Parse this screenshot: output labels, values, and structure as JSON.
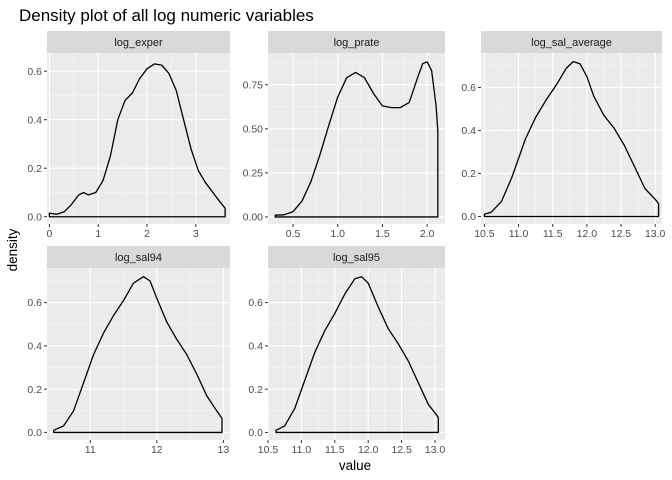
{
  "chart_data": {
    "type": "area",
    "title": "Density plot of all log numeric variables",
    "xlabel": "value",
    "ylabel": "density",
    "colors": {
      "panel_bg": "#ebebeb",
      "strip_bg": "#d9d9d9",
      "grid_major": "#ffffff",
      "line": "#000000"
    },
    "facets": [
      {
        "name": "log_exper",
        "xlim": [
          -0.05,
          3.7
        ],
        "ylim": [
          -0.03,
          0.675
        ],
        "xticks": [
          0,
          1,
          2,
          3
        ],
        "xtick_labels": [
          "0",
          "1",
          "2",
          "3"
        ],
        "yticks": [
          0.0,
          0.2,
          0.4,
          0.6
        ],
        "ytick_labels": [
          "0.0",
          "0.2",
          "0.4",
          "0.6"
        ],
        "x": [
          0.0,
          0.15,
          0.3,
          0.45,
          0.6,
          0.7,
          0.8,
          0.95,
          1.1,
          1.25,
          1.4,
          1.55,
          1.7,
          1.85,
          2.0,
          2.15,
          2.3,
          2.45,
          2.6,
          2.75,
          2.9,
          3.05,
          3.2,
          3.35,
          3.5,
          3.6
        ],
        "y": [
          0.015,
          0.01,
          0.02,
          0.05,
          0.09,
          0.1,
          0.09,
          0.1,
          0.15,
          0.25,
          0.4,
          0.48,
          0.51,
          0.57,
          0.61,
          0.63,
          0.625,
          0.59,
          0.52,
          0.4,
          0.28,
          0.19,
          0.14,
          0.1,
          0.06,
          0.035
        ]
      },
      {
        "name": "log_prate",
        "xlim": [
          0.22,
          2.2
        ],
        "ylim": [
          -0.04,
          0.93
        ],
        "xticks": [
          0.5,
          1.0,
          1.5,
          2.0
        ],
        "xtick_labels": [
          "0.5",
          "1.0",
          "1.5",
          "2.0"
        ],
        "yticks": [
          0.0,
          0.25,
          0.5,
          0.75
        ],
        "ytick_labels": [
          "0.00",
          "0.25",
          "0.50",
          "0.75"
        ],
        "x": [
          0.3,
          0.4,
          0.5,
          0.6,
          0.7,
          0.8,
          0.9,
          1.0,
          1.1,
          1.2,
          1.3,
          1.4,
          1.5,
          1.6,
          1.7,
          1.8,
          1.9,
          1.95,
          2.0,
          2.05,
          2.1,
          2.12
        ],
        "y": [
          0.01,
          0.012,
          0.03,
          0.09,
          0.2,
          0.35,
          0.52,
          0.68,
          0.79,
          0.82,
          0.79,
          0.7,
          0.63,
          0.62,
          0.62,
          0.65,
          0.8,
          0.87,
          0.88,
          0.83,
          0.63,
          0.49
        ]
      },
      {
        "name": "log_sal_average",
        "xlim": [
          10.45,
          13.1
        ],
        "ylim": [
          -0.035,
          0.76
        ],
        "xticks": [
          10.5,
          11.0,
          11.5,
          12.0,
          12.5,
          13.0
        ],
        "xtick_labels": [
          "10.5",
          "11.0",
          "11.5",
          "12.0",
          "12.5",
          "13.0"
        ],
        "yticks": [
          0.0,
          0.2,
          0.4,
          0.6
        ],
        "ytick_labels": [
          "0.0",
          "0.2",
          "0.4",
          "0.6"
        ],
        "x": [
          10.5,
          10.6,
          10.75,
          10.9,
          11.0,
          11.1,
          11.25,
          11.4,
          11.55,
          11.7,
          11.8,
          11.9,
          12.0,
          12.1,
          12.25,
          12.4,
          12.55,
          12.7,
          12.85,
          13.0,
          13.05
        ],
        "y": [
          0.01,
          0.02,
          0.07,
          0.18,
          0.27,
          0.36,
          0.46,
          0.54,
          0.61,
          0.69,
          0.72,
          0.71,
          0.65,
          0.56,
          0.47,
          0.41,
          0.33,
          0.23,
          0.13,
          0.08,
          0.06
        ]
      },
      {
        "name": "log_sal94",
        "xlim": [
          10.35,
          13.1
        ],
        "ylim": [
          -0.035,
          0.76
        ],
        "xticks": [
          11,
          12,
          13
        ],
        "xtick_labels": [
          "11",
          "12",
          "13"
        ],
        "yticks": [
          0.0,
          0.2,
          0.4,
          0.6
        ],
        "ytick_labels": [
          "0.0",
          "0.2",
          "0.4",
          "0.6"
        ],
        "x": [
          10.45,
          10.6,
          10.75,
          10.9,
          11.05,
          11.2,
          11.35,
          11.5,
          11.65,
          11.8,
          11.9,
          12.0,
          12.15,
          12.3,
          12.45,
          12.6,
          12.75,
          12.9,
          12.98
        ],
        "y": [
          0.01,
          0.03,
          0.1,
          0.23,
          0.36,
          0.46,
          0.54,
          0.61,
          0.69,
          0.72,
          0.7,
          0.62,
          0.51,
          0.43,
          0.36,
          0.27,
          0.17,
          0.1,
          0.065
        ]
      },
      {
        "name": "log_sal95",
        "xlim": [
          10.5,
          13.15
        ],
        "ylim": [
          -0.035,
          0.76
        ],
        "xticks": [
          10.5,
          11.0,
          11.5,
          12.0,
          12.5,
          13.0
        ],
        "xtick_labels": [
          "10.5",
          "11.0",
          "11.5",
          "12.0",
          "12.5",
          "13.0"
        ],
        "yticks": [
          0.0,
          0.2,
          0.4,
          0.6
        ],
        "ytick_labels": [
          "0.0",
          "0.2",
          "0.4",
          "0.6"
        ],
        "x": [
          10.62,
          10.75,
          10.9,
          11.05,
          11.2,
          11.35,
          11.5,
          11.65,
          11.8,
          11.9,
          12.0,
          12.15,
          12.3,
          12.45,
          12.6,
          12.75,
          12.9,
          13.0,
          13.05
        ],
        "y": [
          0.01,
          0.03,
          0.11,
          0.24,
          0.37,
          0.47,
          0.55,
          0.64,
          0.71,
          0.72,
          0.69,
          0.58,
          0.48,
          0.41,
          0.33,
          0.23,
          0.13,
          0.09,
          0.07
        ]
      }
    ]
  }
}
